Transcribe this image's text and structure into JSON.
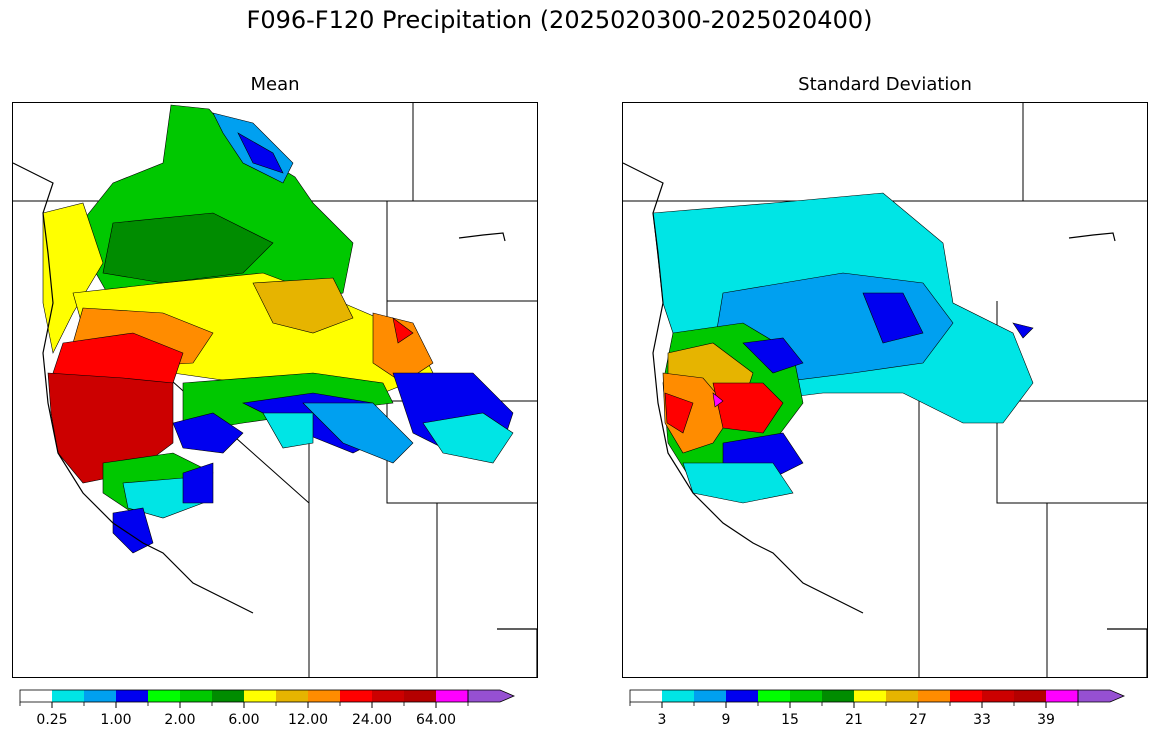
{
  "figure": {
    "title": "F096-F120 Precipitation (2025020300-2025020400)"
  },
  "panels": [
    {
      "title": "Mean",
      "colorbar": {
        "colors": [
          "#ffffff",
          "#00e5e5",
          "#00a0f0",
          "#0000f0",
          "#00ff00",
          "#00c800",
          "#008c00",
          "#ffff00",
          "#e6b400",
          "#ff8c00",
          "#ff0000",
          "#cc0000",
          "#b40000",
          "#ff00ff",
          "#9650d2"
        ],
        "tick_labels": [
          "0.25",
          "1.00",
          "2.00",
          "6.00",
          "12.00",
          "24.00",
          "64.00"
        ],
        "extend": "max"
      }
    },
    {
      "title": "Standard Deviation",
      "colorbar": {
        "colors": [
          "#ffffff",
          "#00e5e5",
          "#00a0f0",
          "#0000f0",
          "#00ff00",
          "#00c800",
          "#008c00",
          "#ffff00",
          "#e6b400",
          "#ff8c00",
          "#ff0000",
          "#cc0000",
          "#b40000",
          "#ff00ff",
          "#9650d2"
        ],
        "tick_labels": [
          "3",
          "9",
          "15",
          "21",
          "27",
          "33",
          "39"
        ],
        "extend": "max"
      }
    }
  ]
}
